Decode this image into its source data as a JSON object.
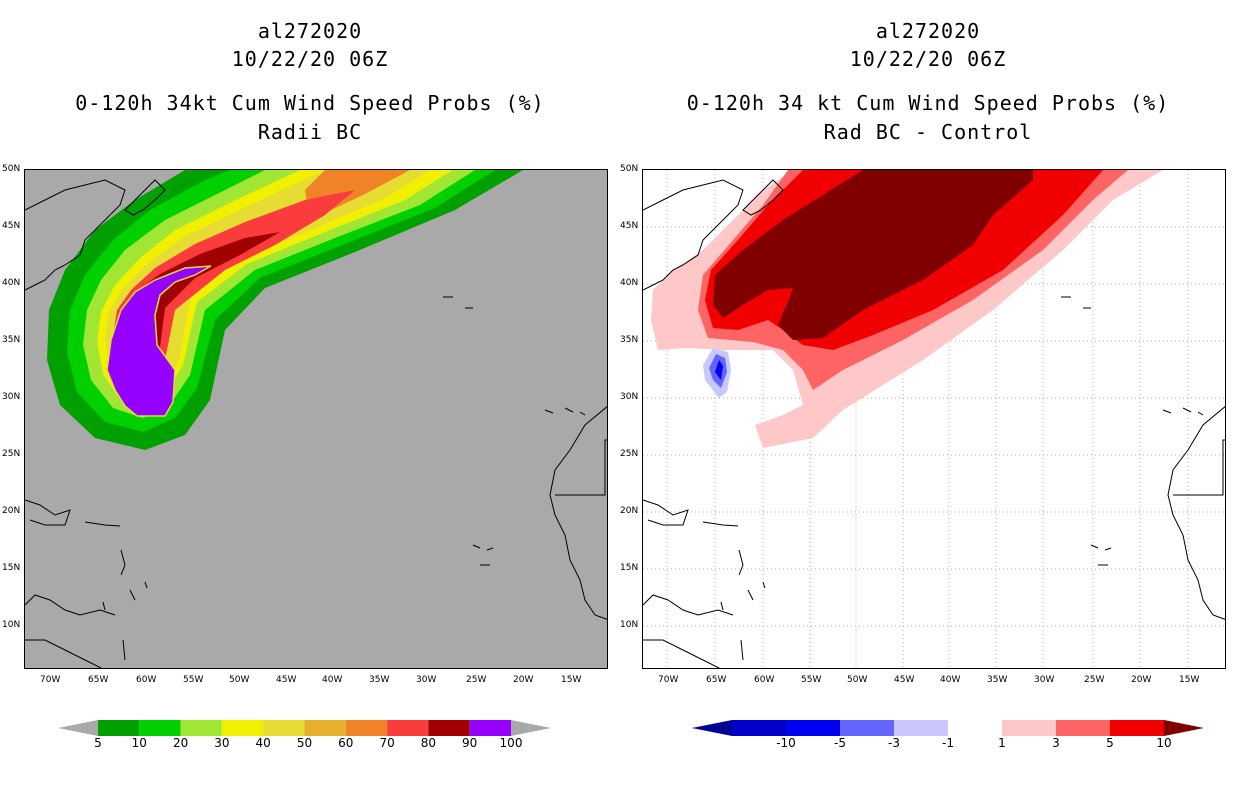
{
  "left": {
    "title_line1": "al272020",
    "title_line2": "10/22/20 06Z",
    "title_line3": "0-120h 34kt Cum Wind Speed Probs (%)",
    "title_line4": "Radii BC",
    "colorbar_labels": [
      "5",
      "10",
      "20",
      "30",
      "40",
      "50",
      "60",
      "70",
      "80",
      "90",
      "100"
    ],
    "colorbar_colors": [
      "#00a000",
      "#00d000",
      "#a0e632",
      "#f0f000",
      "#e6dc32",
      "#e6af2d",
      "#f08228",
      "#fa3c3c",
      "#a00000",
      "#9600ff"
    ]
  },
  "right": {
    "title_line1": "al272020",
    "title_line2": "10/22/20 06Z",
    "title_line3": "0-120h 34 kt Cum Wind Speed Probs (%)",
    "title_line4": "Rad BC - Control",
    "colorbar_labels": [
      "-10",
      "-5",
      "-3",
      "-1",
      "1",
      "3",
      "5",
      "10"
    ],
    "colorbar_colors": [
      "#0000c8",
      "#0000f0",
      "#6464ff",
      "#c8c8ff",
      "#ffffff",
      "#ffc8c8",
      "#ff6464",
      "#f00000"
    ]
  },
  "lat_labels": [
    "50N",
    "45N",
    "40N",
    "35N",
    "30N",
    "25N",
    "20N",
    "15N",
    "10N"
  ],
  "lon_labels": [
    "70W",
    "65W",
    "60W",
    "55W",
    "50W",
    "45W",
    "40W",
    "35W",
    "30W",
    "25W",
    "20W",
    "15W"
  ]
}
